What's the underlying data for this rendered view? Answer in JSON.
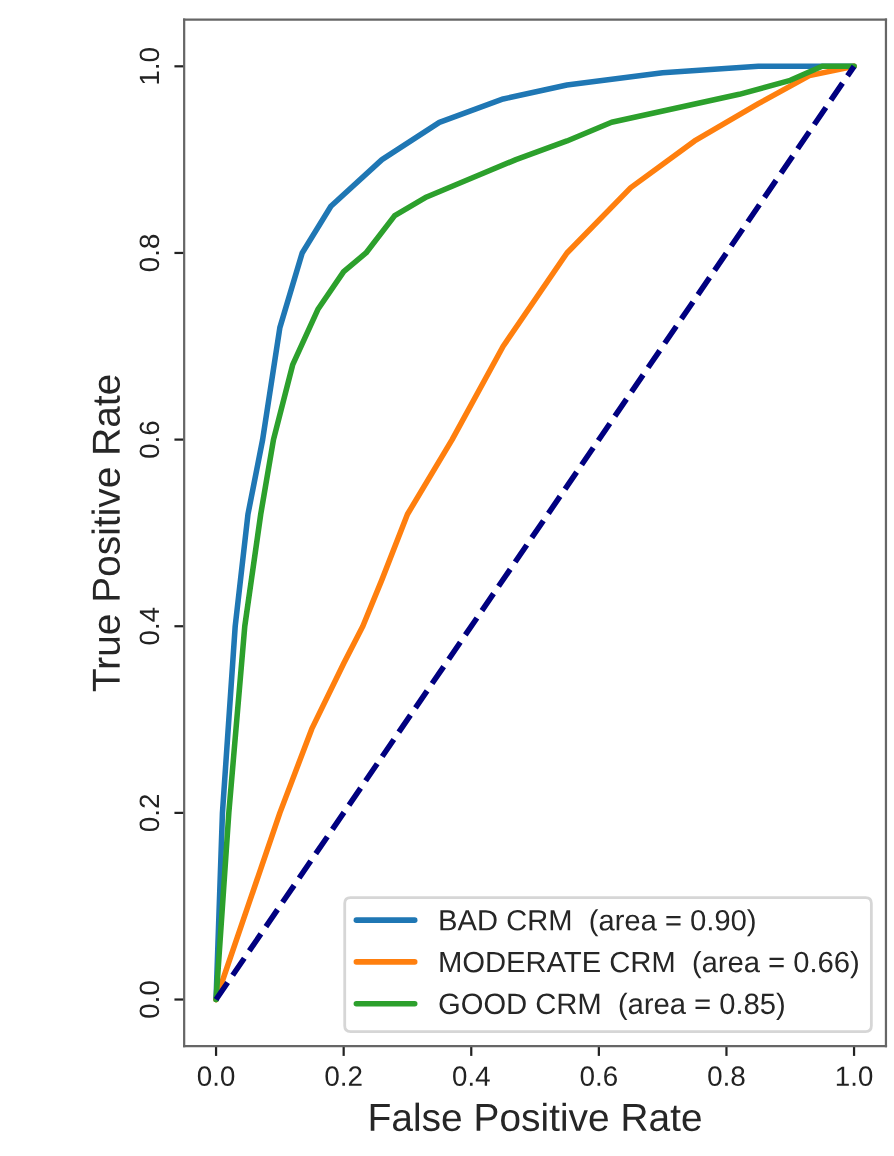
{
  "chart_data": {
    "type": "line",
    "xlabel": "False Positive Rate",
    "ylabel": "True Positive Rate",
    "xlim": [
      -0.05,
      1.05
    ],
    "ylim": [
      -0.05,
      1.05
    ],
    "xticks": [
      {
        "value": 0,
        "label": "0.0"
      },
      {
        "value": 0.2,
        "label": "0.2"
      },
      {
        "value": 0.4,
        "label": "0.4"
      },
      {
        "value": 0.6,
        "label": "0.6"
      },
      {
        "value": 0.8,
        "label": "0.8"
      },
      {
        "value": 1,
        "label": "1.0"
      }
    ],
    "yticks": [
      {
        "value": 0,
        "label": "0.0"
      },
      {
        "value": 0.2,
        "label": "0.2"
      },
      {
        "value": 0.4,
        "label": "0.4"
      },
      {
        "value": 0.6,
        "label": "0.6"
      },
      {
        "value": 0.8,
        "label": "0.8"
      },
      {
        "value": 1,
        "label": "1.0"
      }
    ],
    "grid": false,
    "legend": "bottom right",
    "marker": "none",
    "series": [
      {
        "name": "BAD CRM  (area = 0.90)",
        "color": "#1f77b4",
        "x": [
          0,
          0.01,
          0.03,
          0.05,
          0.073,
          0.1,
          0.135,
          0.18,
          0.26,
          0.35,
          0.45,
          0.55,
          0.7,
          0.85,
          1
        ],
        "values": [
          0,
          0.2,
          0.4,
          0.52,
          0.6,
          0.72,
          0.8,
          0.85,
          0.9,
          0.94,
          0.965,
          0.98,
          0.993,
          1.0,
          1
        ]
      },
      {
        "name": "MODERATE CRM  (area = 0.66)",
        "color": "#ff7f0e",
        "x": [
          0,
          0.05,
          0.1,
          0.15,
          0.2,
          0.23,
          0.26,
          0.3,
          0.37,
          0.45,
          0.55,
          0.65,
          0.75,
          0.85,
          0.93,
          1
        ],
        "values": [
          0,
          0.1,
          0.2,
          0.29,
          0.36,
          0.4,
          0.45,
          0.52,
          0.6,
          0.7,
          0.8,
          0.87,
          0.92,
          0.96,
          0.99,
          1
        ]
      },
      {
        "name": "GOOD CRM  (area = 0.85)",
        "color": "#2ca02c",
        "x": [
          0,
          0.02,
          0.045,
          0.07,
          0.09,
          0.12,
          0.16,
          0.2,
          0.235,
          0.28,
          0.33,
          0.4,
          0.47,
          0.55,
          0.62,
          0.72,
          0.82,
          0.9,
          0.95,
          1
        ],
        "values": [
          0,
          0.2,
          0.4,
          0.52,
          0.6,
          0.68,
          0.74,
          0.78,
          0.8,
          0.84,
          0.86,
          0.88,
          0.9,
          0.92,
          0.94,
          0.955,
          0.97,
          0.985,
          1.0,
          1
        ]
      },
      {
        "color": "#000080",
        "line_style": "dashed",
        "x": [
          0,
          1
        ],
        "values": [
          0,
          1
        ]
      }
    ]
  }
}
